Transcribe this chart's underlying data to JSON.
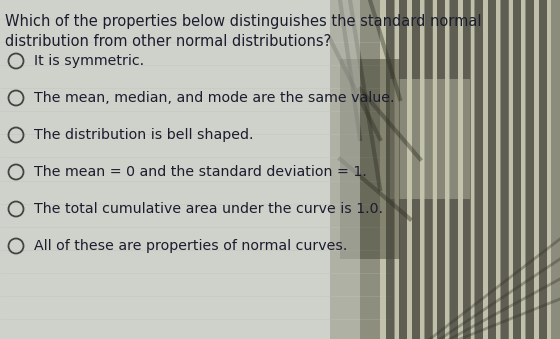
{
  "question_line1": "Which of the properties below distinguishes the standard normal",
  "question_line2": "distribution from other normal distributions?",
  "options": [
    "It is symmetric.",
    "The mean, median, and mode are the same value.",
    "The distribution is bell shaped.",
    "The mean = 0 and the standard deviation = 1.",
    "The total cumulative area under the curve is 1.0.",
    "All of these are properties of normal curves."
  ],
  "text_color": "#1c1c2e",
  "question_fontsize": 10.5,
  "option_fontsize": 10.2,
  "circle_color": "#444444",
  "fig_width": 5.6,
  "fig_height": 3.39,
  "dpi": 100,
  "bg_left": "#c8ccc8",
  "bg_mid": "#909080",
  "bg_right_dark": "#505050",
  "stripe_light": "#e0e0d0",
  "stripe_dark": "#606858"
}
